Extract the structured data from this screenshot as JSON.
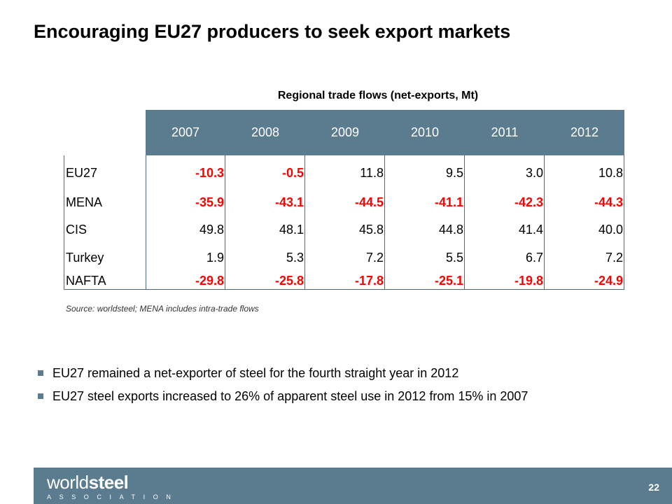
{
  "slide": {
    "title": "Encouraging EU27 producers to seek export markets"
  },
  "table": {
    "caption": "Regional trade flows (net-exports, Mt)",
    "years": [
      "2007",
      "2008",
      "2009",
      "2010",
      "2011",
      "2012"
    ],
    "rows": [
      {
        "region": "EU27",
        "values": [
          "-10.3",
          "-0.5",
          "11.8",
          "9.5",
          "3.0",
          "10.8"
        ]
      },
      {
        "region": "MENA",
        "values": [
          "-35.9",
          "-43.1",
          "-44.5",
          "-41.1",
          "-42.3",
          "-44.3"
        ]
      },
      {
        "region": "CIS",
        "values": [
          "49.8",
          "48.1",
          "45.8",
          "44.8",
          "41.4",
          "40.0"
        ]
      },
      {
        "region": "Turkey",
        "values": [
          "1.9",
          "5.3",
          "7.2",
          "5.5",
          "6.7",
          "7.2"
        ]
      },
      {
        "region": "NAFTA",
        "values": [
          "-29.8",
          "-25.8",
          "-17.8",
          "-25.1",
          "-19.8",
          "-24.9"
        ]
      }
    ],
    "source": "Source: worldsteel; MENA includes intra-trade flows"
  },
  "bullets": [
    "EU27 remained a net-exporter of steel for the fourth straight year in 2012",
    "EU27 steel exports increased to 26% of apparent steel use in 2012 from 15% in 2007"
  ],
  "footer": {
    "logo_light": "world",
    "logo_bold": "steel",
    "logo_sub": "ASSOCIATION",
    "page_number": "22"
  },
  "colors": {
    "band": "#5b7b8e",
    "negative": "#ff0000",
    "text": "#000000"
  }
}
